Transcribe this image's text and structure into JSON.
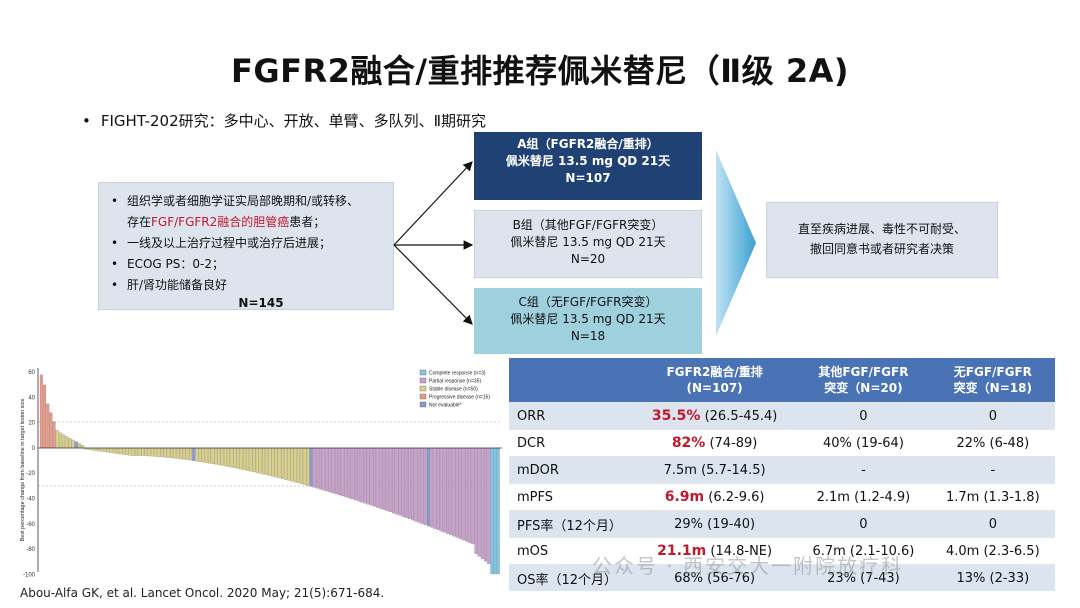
{
  "title": "FGFR2融合/重排推荐佩米替尼（Ⅱ级 2A)",
  "subtitle": "FIGHT-202研究：多中心、开放、单臂、多队列、Ⅱ期研究",
  "criteria": {
    "line1": "组织学或者细胞学证实局部晚期和/或转移、",
    "line2_pre": "存在",
    "line2_red": "FGF/FGFR2融合的胆管癌",
    "line2_post": "患者；",
    "line3": "一线及以上治疗过程中或治疗后进展；",
    "line4": "ECOG PS：0-2；",
    "line5": "肝/肾功能储备良好",
    "n": "N=145"
  },
  "arms": {
    "a": {
      "line1": "A组（FGFR2融合/重排）",
      "line2": "佩米替尼 13.5 mg QD 21天",
      "line3": "N=107"
    },
    "b": {
      "line1": "B组（其他FGF/FGFR突变）",
      "line2": "佩米替尼 13.5 mg QD 21天",
      "line3": "N=20"
    },
    "c": {
      "line1": "C组（无FGF/FGFR突变）",
      "line2": "佩米替尼 13.5 mg QD 21天",
      "line3": "N=18"
    }
  },
  "outcome": {
    "line1": "直至疾病进展、毒性不可耐受、",
    "line2": "撤回同意书或者研究者决策"
  },
  "waterfall": {
    "ylabel": "Best percentage change from baseline in target lesion size",
    "ticks": [
      "60",
      "40",
      "20",
      "0",
      "-20",
      "-40",
      "-60",
      "-80",
      "-100"
    ],
    "legend": [
      {
        "label": "Complete response (n=3)",
        "color": "#7fc6e6"
      },
      {
        "label": "Partial response (n=35)",
        "color": "#c7a0cc"
      },
      {
        "label": "Stable disease (n=50)",
        "color": "#d9cf8a"
      },
      {
        "label": "Progressive disease (n=16)",
        "color": "#e89a8a"
      },
      {
        "label": "Not evaluable*",
        "color": "#8a9ad0"
      }
    ]
  },
  "table": {
    "headers": [
      {
        "l1": "",
        "l2": ""
      },
      {
        "l1": "FGFR2融合/重排",
        "l2": "(N=107)"
      },
      {
        "l1": "其他FGF/FGFR",
        "l2": "突变（N=20)"
      },
      {
        "l1": "无FGF/FGFR",
        "l2": "突变（N=18)"
      }
    ],
    "rows": [
      {
        "label": "ORR",
        "a_hl": "35.5%",
        "a_rest": " (26.5-45.4)",
        "b": "0",
        "c": "0"
      },
      {
        "label": "DCR",
        "a_hl": "82%",
        "a_rest": " (74-89)",
        "b": "40% (19-64)",
        "c": "22% (6-48)"
      },
      {
        "label": "mDOR",
        "a_hl": "",
        "a_rest": "7.5m (5.7-14.5)",
        "b": "-",
        "c": "-"
      },
      {
        "label": "mPFS",
        "a_hl": "6.9m",
        "a_rest": " (6.2-9.6)",
        "b": "2.1m (1.2-4.9)",
        "c": "1.7m (1.3-1.8)"
      },
      {
        "label": "PFS率（12个月）",
        "a_hl": "",
        "a_rest": "29% (19-40)",
        "b": "0",
        "c": "0"
      },
      {
        "label": "mOS",
        "a_hl": "21.1m",
        "a_rest": " (14.8-NE)",
        "b": "6.7m (2.1-10.6)",
        "c": "4.0m (2.3-6.5)"
      },
      {
        "label": "OS率（12个月）",
        "a_hl": "",
        "a_rest": "68% (56-76)",
        "b": "23% (7-43)",
        "c": "13% (2-33)"
      }
    ]
  },
  "reference": "Abou-Alfa GK, et al. Lancet Oncol. 2020 May; 21(5):671-684.",
  "watermark": "公众号 · 西安交大一附院放疗科"
}
